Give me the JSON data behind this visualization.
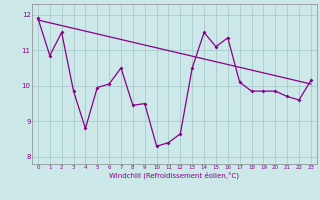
{
  "xlabel": "Windchill (Refroidissement éolien,°C)",
  "background_color": "#cce8e8",
  "line_color": "#880088",
  "grid_color": "#aacccc",
  "xlim": [
    -0.5,
    23.5
  ],
  "ylim": [
    7.8,
    12.3
  ],
  "yticks": [
    8,
    9,
    10,
    11,
    12
  ],
  "xticks": [
    0,
    1,
    2,
    3,
    4,
    5,
    6,
    7,
    8,
    9,
    10,
    11,
    12,
    13,
    14,
    15,
    16,
    17,
    18,
    19,
    20,
    21,
    22,
    23
  ],
  "zigzag_x": [
    0,
    1,
    2,
    3,
    4,
    5,
    6,
    7,
    8,
    9,
    10,
    11,
    12,
    13,
    14,
    15,
    16,
    17,
    18,
    19,
    20,
    21,
    22,
    23
  ],
  "zigzag_y": [
    11.9,
    10.85,
    11.5,
    9.85,
    8.8,
    9.95,
    10.05,
    10.5,
    9.45,
    9.5,
    8.3,
    8.4,
    8.65,
    10.5,
    11.5,
    11.1,
    11.35,
    10.1,
    9.85,
    9.85,
    9.85,
    9.7,
    9.6,
    10.15
  ],
  "trend_x": [
    0,
    23
  ],
  "trend_y": [
    11.85,
    10.05
  ]
}
